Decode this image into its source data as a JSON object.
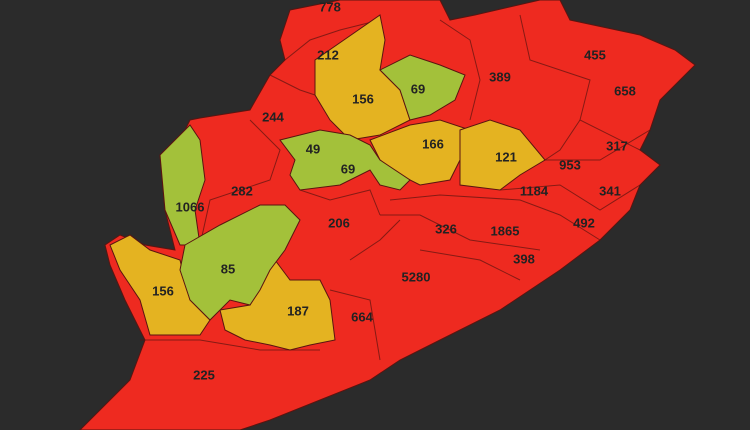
{
  "districts": [
    {
      "label": 778
    },
    {
      "label": 212
    },
    {
      "label": 455
    },
    {
      "label": 389
    },
    {
      "label": 658
    },
    {
      "label": 156
    },
    {
      "label": 69
    },
    {
      "label": 244
    },
    {
      "label": 317
    },
    {
      "label": 49
    },
    {
      "label": 166
    },
    {
      "label": 121
    },
    {
      "label": 69
    },
    {
      "label": 953
    },
    {
      "label": 282
    },
    {
      "label": 1184
    },
    {
      "label": 341
    },
    {
      "label": 1066
    },
    {
      "label": 206
    },
    {
      "label": 326
    },
    {
      "label": 1865
    },
    {
      "label": 492
    },
    {
      "label": 85
    },
    {
      "label": 398
    },
    {
      "label": 5280
    },
    {
      "label": 156
    },
    {
      "label": 187
    },
    {
      "label": 664
    },
    {
      "label": 225
    }
  ]
}
